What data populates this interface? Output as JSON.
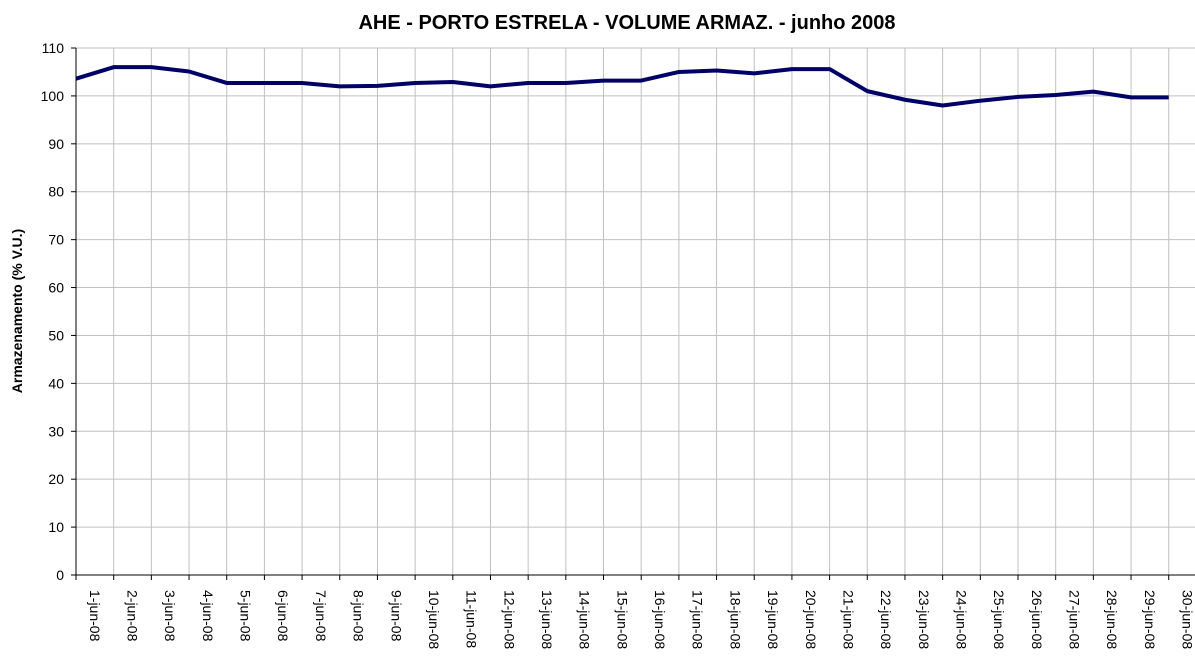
{
  "chart_data": {
    "type": "line",
    "title": "AHE - PORTO ESTRELA - VOLUME ARMAZ. - junho 2008",
    "y_label": "Armazenamento (% V.U.)",
    "categories": [
      "1-jun-08",
      "2-jun-08",
      "3-jun-08",
      "4-jun-08",
      "5-jun-08",
      "6-jun-08",
      "7-jun-08",
      "8-jun-08",
      "9-jun-08",
      "10-jun-08",
      "11-jun-08",
      "12-jun-08",
      "13-jun-08",
      "14-jun-08",
      "15-jun-08",
      "16-jun-08",
      "17-jun-08",
      "18-jun-08",
      "19-jun-08",
      "20-jun-08",
      "21-jun-08",
      "22-jun-08",
      "23-jun-08",
      "24-jun-08",
      "25-jun-08",
      "26-jun-08",
      "27-jun-08",
      "28-jun-08",
      "29-jun-08",
      "30-jun-08"
    ],
    "values": [
      103.6,
      106,
      106,
      105.1,
      102.7,
      102.7,
      102.7,
      102,
      102.1,
      102.7,
      102.9,
      102,
      102.7,
      102.7,
      103.2,
      103.2,
      105,
      105.3,
      104.7,
      105.6,
      105.6,
      101,
      99.2,
      98,
      99,
      99.8,
      100.2,
      100.9,
      99.7,
      99.7
    ],
    "color": "#000066",
    "ylim": [
      0,
      110
    ],
    "yticks": [
      0,
      10,
      20,
      30,
      40,
      50,
      60,
      70,
      80,
      90,
      100,
      110
    ],
    "grid": true
  }
}
